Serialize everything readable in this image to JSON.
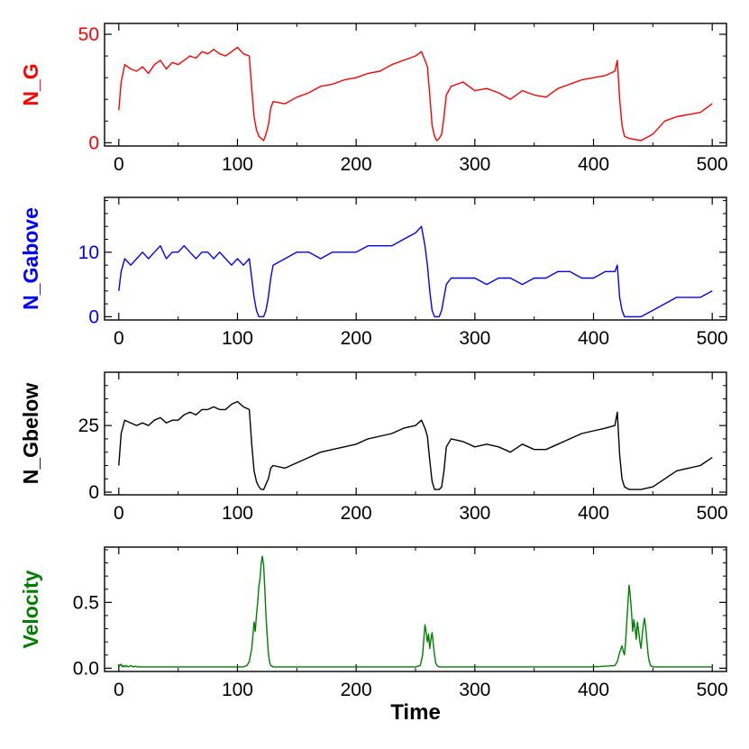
{
  "chart_data": [
    {
      "type": "line",
      "ylabel": "N_G",
      "color": "#ff0000",
      "xlim": [
        -12,
        512
      ],
      "ylim": [
        -1.5,
        55
      ],
      "xticks": [
        "0",
        "100",
        "200",
        "300",
        "400",
        "500"
      ],
      "yticks": [
        "0",
        "50"
      ],
      "series": [
        {
          "name": "N_G",
          "x": [
            0,
            2,
            5,
            10,
            15,
            20,
            25,
            30,
            35,
            40,
            45,
            50,
            55,
            60,
            65,
            70,
            75,
            80,
            85,
            90,
            95,
            100,
            105,
            110,
            112,
            114,
            116,
            118,
            120,
            122,
            124,
            126,
            128,
            130,
            140,
            150,
            160,
            170,
            180,
            190,
            200,
            210,
            220,
            230,
            240,
            250,
            255,
            258,
            260,
            262,
            264,
            266,
            268,
            270,
            272,
            274,
            276,
            280,
            290,
            300,
            310,
            320,
            330,
            340,
            350,
            360,
            370,
            380,
            390,
            400,
            410,
            418,
            420,
            422,
            424,
            426,
            430,
            440,
            450,
            460,
            470,
            480,
            490,
            500
          ],
          "y": [
            15,
            28,
            36,
            34,
            33,
            35,
            32,
            36,
            38,
            34,
            37,
            36,
            38,
            40,
            39,
            42,
            41,
            43,
            41,
            40,
            42,
            44,
            41,
            40,
            25,
            12,
            6,
            3,
            2,
            1,
            4,
            8,
            16,
            19,
            18,
            21,
            23,
            26,
            27,
            29,
            30,
            32,
            33,
            36,
            38,
            40,
            42,
            38,
            35,
            22,
            8,
            3,
            1,
            2,
            4,
            12,
            22,
            26,
            28,
            24,
            25,
            23,
            20,
            24,
            22,
            21,
            25,
            27,
            29,
            30,
            31,
            33,
            38,
            20,
            8,
            3,
            2,
            1,
            4,
            10,
            12,
            13,
            14,
            18
          ]
        }
      ]
    },
    {
      "type": "line",
      "ylabel": "N_Gabove",
      "color": "#0000ff",
      "xlim": [
        -12,
        512
      ],
      "ylim": [
        -0.5,
        18.5
      ],
      "xticks": [
        "0",
        "100",
        "200",
        "300",
        "400",
        "500"
      ],
      "yticks": [
        "0",
        "10"
      ],
      "series": [
        {
          "name": "N_Gabove",
          "x": [
            0,
            2,
            5,
            10,
            15,
            20,
            25,
            30,
            35,
            40,
            45,
            50,
            55,
            60,
            65,
            70,
            75,
            80,
            85,
            90,
            95,
            100,
            105,
            110,
            112,
            114,
            116,
            118,
            120,
            122,
            124,
            126,
            128,
            130,
            140,
            150,
            160,
            170,
            180,
            190,
            200,
            210,
            220,
            230,
            240,
            250,
            255,
            258,
            260,
            262,
            264,
            266,
            268,
            270,
            272,
            274,
            276,
            280,
            290,
            300,
            310,
            320,
            330,
            340,
            350,
            360,
            370,
            380,
            390,
            400,
            410,
            418,
            420,
            422,
            424,
            426,
            430,
            440,
            450,
            460,
            470,
            480,
            490,
            500
          ],
          "y": [
            4,
            7,
            9,
            8,
            9,
            10,
            9,
            10,
            11,
            9,
            10,
            10,
            11,
            10,
            9,
            10,
            10,
            9,
            10,
            9,
            8,
            9,
            8,
            9,
            6,
            3,
            1,
            0,
            0,
            0,
            1,
            3,
            6,
            8,
            9,
            10,
            10,
            9,
            10,
            10,
            10,
            11,
            11,
            11,
            12,
            13,
            14,
            11,
            8,
            4,
            1,
            0,
            0,
            0,
            1,
            3,
            5,
            6,
            6,
            6,
            5,
            6,
            6,
            5,
            6,
            6,
            7,
            7,
            6,
            6,
            7,
            7,
            8,
            3,
            1,
            0,
            0,
            0,
            1,
            2,
            3,
            3,
            3,
            4
          ]
        }
      ]
    },
    {
      "type": "line",
      "ylabel": "N_Gbelow",
      "color": "#000000",
      "xlim": [
        -12,
        512
      ],
      "ylim": [
        -1,
        45
      ],
      "xticks": [
        "0",
        "100",
        "200",
        "300",
        "400",
        "500"
      ],
      "yticks": [
        "0",
        "25"
      ],
      "series": [
        {
          "name": "N_Gbelow",
          "x": [
            0,
            2,
            5,
            10,
            15,
            20,
            25,
            30,
            35,
            40,
            45,
            50,
            55,
            60,
            65,
            70,
            75,
            80,
            85,
            90,
            95,
            100,
            105,
            110,
            112,
            114,
            116,
            118,
            120,
            122,
            124,
            126,
            128,
            130,
            140,
            150,
            160,
            170,
            180,
            190,
            200,
            210,
            220,
            230,
            240,
            250,
            255,
            258,
            260,
            262,
            264,
            266,
            268,
            270,
            272,
            274,
            276,
            280,
            290,
            300,
            310,
            320,
            330,
            340,
            350,
            360,
            370,
            380,
            390,
            400,
            410,
            418,
            420,
            422,
            424,
            426,
            430,
            440,
            450,
            460,
            470,
            480,
            490,
            500
          ],
          "y": [
            10,
            22,
            27,
            26,
            25,
            26,
            25,
            27,
            28,
            26,
            27,
            27,
            29,
            30,
            29,
            31,
            31,
            32,
            31,
            31,
            33,
            34,
            32,
            31,
            18,
            8,
            4,
            2,
            1,
            1,
            3,
            5,
            9,
            10,
            9,
            11,
            13,
            15,
            16,
            17,
            18,
            20,
            21,
            22,
            24,
            25,
            27,
            24,
            21,
            12,
            4,
            1,
            1,
            1,
            2,
            8,
            17,
            20,
            19,
            17,
            18,
            17,
            15,
            18,
            16,
            16,
            18,
            20,
            22,
            23,
            24,
            25,
            30,
            14,
            5,
            2,
            1,
            1,
            2,
            5,
            8,
            9,
            10,
            13
          ]
        }
      ]
    },
    {
      "type": "line",
      "ylabel": "Velocity",
      "xlabel": "Time",
      "color": "#008000",
      "xlim": [
        -12,
        512
      ],
      "ylim": [
        -0.025,
        0.92
      ],
      "xticks": [
        "0",
        "100",
        "200",
        "300",
        "400",
        "500"
      ],
      "yticks": [
        "0.0",
        "0.5"
      ],
      "series": [
        {
          "name": "Velocity",
          "x": [
            0,
            1,
            2,
            3,
            4,
            5,
            6,
            8,
            10,
            12,
            14,
            16,
            20,
            30,
            40,
            50,
            60,
            70,
            80,
            90,
            100,
            105,
            108,
            110,
            112,
            114,
            115,
            116,
            117,
            118,
            119,
            120,
            121,
            122,
            123,
            124,
            125,
            126,
            127,
            128,
            130,
            135,
            140,
            150,
            200,
            250,
            254,
            256,
            257,
            258,
            259,
            260,
            261,
            262,
            263,
            264,
            265,
            266,
            267,
            268,
            270,
            275,
            300,
            350,
            400,
            418,
            420,
            422,
            424,
            425,
            426,
            427,
            428,
            429,
            430,
            431,
            432,
            433,
            434,
            435,
            436,
            437,
            438,
            439,
            440,
            441,
            442,
            443,
            444,
            445,
            446,
            447,
            448,
            450,
            455,
            460,
            480,
            500
          ],
          "y": [
            0.01,
            0.02,
            0.03,
            0.01,
            0.02,
            0.01,
            0.02,
            0.01,
            0.02,
            0.01,
            0.015,
            0.01,
            0.01,
            0.01,
            0.01,
            0.01,
            0.01,
            0.01,
            0.01,
            0.01,
            0.01,
            0.01,
            0.02,
            0.05,
            0.15,
            0.35,
            0.28,
            0.4,
            0.5,
            0.62,
            0.68,
            0.8,
            0.85,
            0.78,
            0.6,
            0.4,
            0.25,
            0.12,
            0.05,
            0.02,
            0.01,
            0.01,
            0.01,
            0.01,
            0.01,
            0.01,
            0.02,
            0.1,
            0.22,
            0.33,
            0.27,
            0.2,
            0.26,
            0.15,
            0.22,
            0.27,
            0.18,
            0.1,
            0.04,
            0.02,
            0.01,
            0.01,
            0.01,
            0.01,
            0.01,
            0.02,
            0.05,
            0.12,
            0.17,
            0.13,
            0.1,
            0.2,
            0.35,
            0.5,
            0.63,
            0.55,
            0.42,
            0.28,
            0.37,
            0.3,
            0.22,
            0.35,
            0.28,
            0.2,
            0.15,
            0.25,
            0.33,
            0.38,
            0.3,
            0.2,
            0.1,
            0.05,
            0.02,
            0.01,
            0.01,
            0.01,
            0.01,
            0.01
          ]
        }
      ]
    }
  ]
}
